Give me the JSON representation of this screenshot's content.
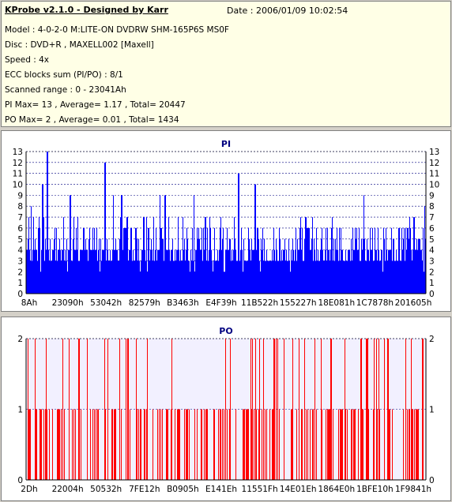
{
  "info": {
    "title": "KProbe v2.1.0 - Designed by Karr",
    "date": "Date : 2006/01/09 10:02:54",
    "lines": [
      "Model : 4-0-2-0 M:LITE-ON DVDRW SHM-165P6S MS0F",
      "Disc : DVD+R , MAXELL002 [Maxell]",
      "Speed : 4x",
      "ECC blocks sum (PI/PO) : 8/1",
      "Scanned range : 0 - 23041Ah",
      "PI Max= 13 , Average= 1.17 , Total= 20447",
      "PO Max= 2 , Average= 0.01 , Total= 1434"
    ]
  },
  "chart_data": [
    {
      "type": "bar",
      "title": "PI",
      "color": "#0000ff",
      "ylim": [
        0,
        13
      ],
      "yticks": [
        0,
        1,
        2,
        3,
        4,
        5,
        6,
        7,
        8,
        9,
        10,
        11,
        12,
        13
      ],
      "xlim": [
        0,
        230426
      ],
      "xticks": [
        {
          "label": "8Ah",
          "value": 138
        },
        {
          "label": "23090h",
          "value": 143504
        },
        {
          "label": "53042h",
          "value": 340034
        },
        {
          "label": "82579h",
          "value": 533881
        },
        {
          "label": "B3463h",
          "value": 734307
        },
        {
          "label": "E4F39h",
          "value": 937785
        },
        {
          "label": "11B522h",
          "value": 1160482
        },
        {
          "label": "155227h",
          "value": 1397287
        },
        {
          "label": "18E081h",
          "value": 1630337
        },
        {
          "label": "1C7878h",
          "value": 1865848
        },
        {
          "label": "201605h",
          "value": 2102789
        }
      ],
      "peaks": [
        {
          "x_frac": 0.052,
          "value": 13
        },
        {
          "x_frac": 0.196,
          "value": 12
        },
        {
          "x_frac": 0.53,
          "value": 11
        },
        {
          "x_frac": 0.572,
          "value": 10
        },
        {
          "x_frac": 0.041,
          "value": 10
        },
        {
          "x_frac": 0.11,
          "value": 9
        },
        {
          "x_frac": 0.238,
          "value": 9
        }
      ],
      "baseline_typical": 4,
      "average": 1.17
    },
    {
      "type": "bar",
      "title": "PO",
      "color": "#ff0000",
      "ylim": [
        0,
        2
      ],
      "yticks": [
        0,
        1,
        2
      ],
      "xticks": [
        {
          "label": "2Dh",
          "value": 45
        },
        {
          "label": "22004h",
          "value": 139268
        },
        {
          "label": "50532h",
          "value": 329010
        },
        {
          "label": "7FE12h",
          "value": 523794
        },
        {
          "label": "B0905h",
          "value": 723205
        },
        {
          "label": "E141Eh",
          "value": 922654
        },
        {
          "label": "11551Fh",
          "value": 1135903
        },
        {
          "label": "14E01Eh",
          "value": 1368094
        },
        {
          "label": "1864E0h",
          "value": 1598688
        },
        {
          "label": "1BFE10h",
          "value": 1834512
        },
        {
          "label": "1F9841h",
          "value": 2070593
        }
      ],
      "average": 0.01
    }
  ]
}
